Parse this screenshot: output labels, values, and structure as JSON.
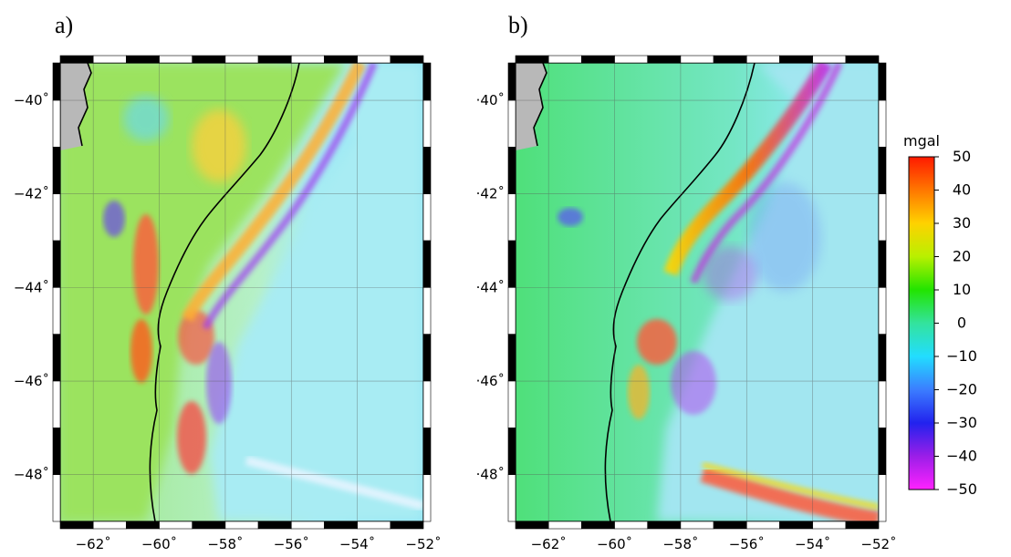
{
  "figure": {
    "panels": [
      {
        "id": "a",
        "label": "a)",
        "x_ticks": [
          "−62˚",
          "−60˚",
          "−58˚",
          "−56˚",
          "−54˚",
          "−52˚"
        ],
        "y_ticks": [
          "−40˚",
          "−42˚",
          "−44˚",
          "−46˚",
          "−48˚"
        ]
      },
      {
        "id": "b",
        "label": "b)",
        "x_ticks": [
          "−62˚",
          "−60˚",
          "−58˚",
          "−56˚",
          "−54˚",
          "−52˚"
        ],
        "y_ticks": [
          "·40˚",
          "·42˚",
          "·44˚",
          "·46˚",
          "·48˚"
        ]
      }
    ],
    "map_extent": {
      "lon": [
        -63,
        -52
      ],
      "lat": [
        -49,
        -39.2
      ]
    },
    "grid_lon": [
      -62,
      -60,
      -58,
      -56,
      -54,
      -52
    ],
    "grid_lat": [
      -40,
      -42,
      -44,
      -46,
      -48
    ],
    "colorbar": {
      "unit": "mgal",
      "ticks": [
        "50",
        "40",
        "30",
        "20",
        "10",
        "0",
        "−10",
        "−20",
        "−30",
        "−40",
        "−50"
      ],
      "range": [
        -50,
        50
      ],
      "colors": [
        "#ff1a00",
        "#ff7700",
        "#ffd200",
        "#b8f000",
        "#22e400",
        "#33e39d",
        "#22ddff",
        "#3b7dff",
        "#2222ee",
        "#9b1ee8",
        "#ff22ff"
      ]
    },
    "colors": {
      "land": "#b8b8b8",
      "coast": "#000000",
      "ocean_deep": "#8fe6f7",
      "shelf": "#7ee06e"
    }
  }
}
